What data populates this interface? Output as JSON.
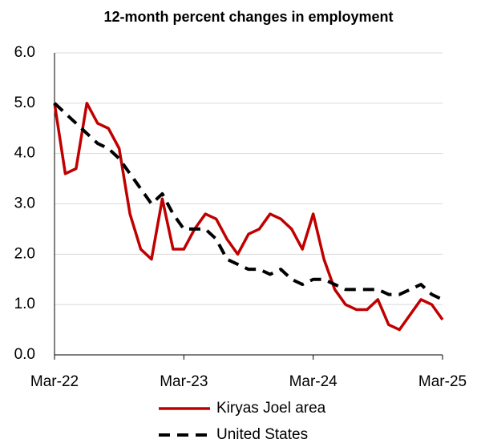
{
  "chart_data": {
    "type": "line",
    "title": "12-month percent changes in employment",
    "categories": [
      "Mar-22",
      null,
      null,
      null,
      null,
      null,
      null,
      null,
      null,
      null,
      null,
      null,
      "Mar-23",
      null,
      null,
      null,
      null,
      null,
      null,
      null,
      null,
      null,
      null,
      null,
      "Mar-24",
      null,
      null,
      null,
      null,
      null,
      null,
      null,
      null,
      null,
      null,
      null,
      "Mar-25"
    ],
    "series": [
      {
        "name": "Kiryas Joel area",
        "color": "#c00000",
        "dash": false,
        "values": [
          5.0,
          3.6,
          3.7,
          5.0,
          4.6,
          4.5,
          4.1,
          2.8,
          2.1,
          1.9,
          3.1,
          2.1,
          2.1,
          2.5,
          2.8,
          2.7,
          2.3,
          2.0,
          2.4,
          2.5,
          2.8,
          2.7,
          2.5,
          2.1,
          2.8,
          1.9,
          1.3,
          1.0,
          0.9,
          0.9,
          1.1,
          0.6,
          0.5,
          0.8,
          1.1,
          1.0,
          0.7
        ]
      },
      {
        "name": "United States",
        "color": "#000000",
        "dash": true,
        "values": [
          5.0,
          4.8,
          4.6,
          4.4,
          4.2,
          4.1,
          3.9,
          3.6,
          3.3,
          3.0,
          3.2,
          2.8,
          2.5,
          2.5,
          2.5,
          2.3,
          1.9,
          1.8,
          1.7,
          1.7,
          1.6,
          1.7,
          1.5,
          1.4,
          1.5,
          1.5,
          1.4,
          1.3,
          1.3,
          1.3,
          1.3,
          1.2,
          1.2,
          1.3,
          1.4,
          1.2,
          1.1
        ]
      }
    ],
    "ylim": [
      0,
      6
    ],
    "yticks": [
      {
        "value": 0,
        "label": "0.0"
      },
      {
        "value": 1,
        "label": "1.0"
      },
      {
        "value": 2,
        "label": "2.0"
      },
      {
        "value": 3,
        "label": "3.0"
      },
      {
        "value": 4,
        "label": "4.0"
      },
      {
        "value": 5,
        "label": "5.0"
      },
      {
        "value": 6,
        "label": "6.0"
      }
    ],
    "grid": true,
    "legend": "bottom"
  }
}
